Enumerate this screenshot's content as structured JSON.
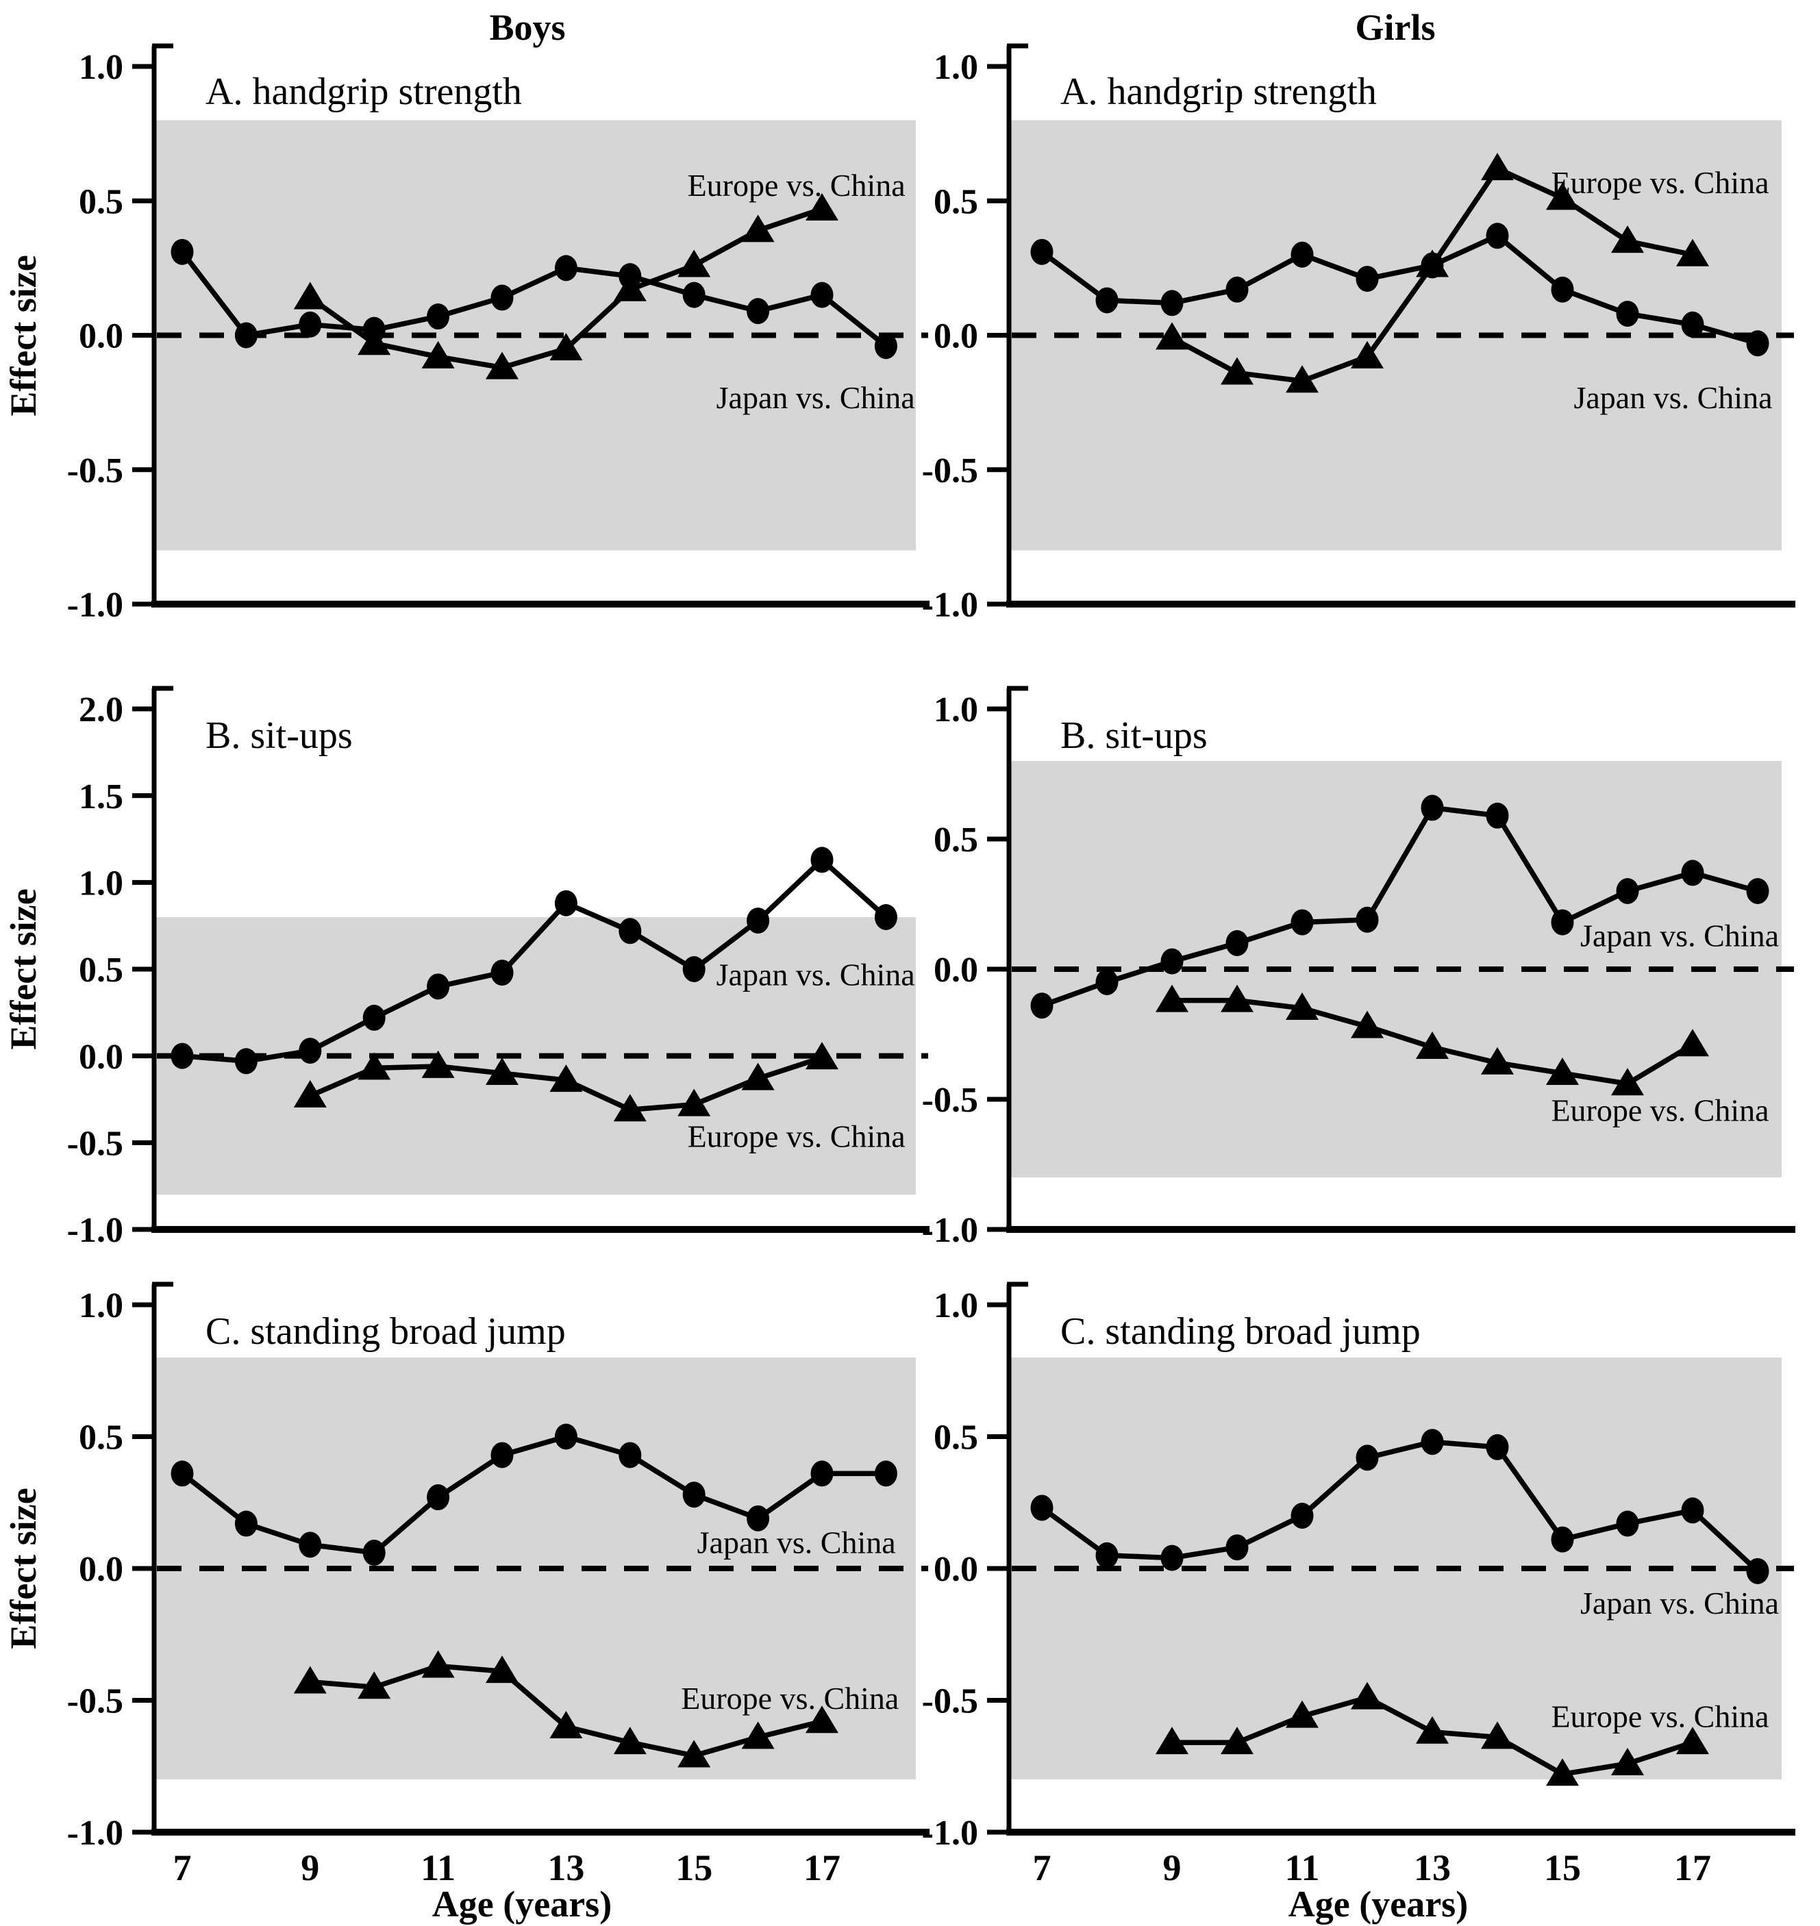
{
  "figure": {
    "column_titles": [
      "Boys",
      "Girls"
    ],
    "y_axis_label": "Effect size",
    "x_axis_label": "Age (years)",
    "colors": {
      "line": "#000000",
      "reference_band": "#d6d6d6",
      "background": "#ffffff"
    }
  },
  "chart_data": [
    {
      "id": "boys-handgrip",
      "column": "Boys",
      "panel_label": "A. handgrip strength",
      "type": "line",
      "xlabel": "Age (years)",
      "ylabel": "Effect size",
      "ylim": [
        -1.0,
        1.0
      ],
      "yticks": [
        "1.0",
        "0.5",
        "0.0",
        "-0.5",
        "-1.0"
      ],
      "ytick_values": [
        1.0,
        0.5,
        0.0,
        -0.5,
        -1.0
      ],
      "xticks": [
        7,
        9,
        11,
        13,
        15,
        17
      ],
      "show_xtick_labels": false,
      "reference_band": [
        -0.8,
        0.8
      ],
      "zero_line": 0.0,
      "grid": false,
      "series": [
        {
          "name": "Japan vs. China",
          "marker": "circle",
          "x": [
            7,
            8,
            9,
            10,
            11,
            12,
            13,
            14,
            15,
            16,
            17,
            18
          ],
          "values": [
            0.31,
            0.0,
            0.04,
            0.02,
            0.07,
            0.14,
            0.25,
            0.22,
            0.15,
            0.09,
            0.15,
            -0.04
          ],
          "label": {
            "text": "Japan vs. China",
            "age": 16.9,
            "value": -0.23
          }
        },
        {
          "name": "Europe vs. China",
          "marker": "triangle",
          "x": [
            9,
            10,
            11,
            12,
            13,
            14,
            15,
            16,
            17
          ],
          "values": [
            0.14,
            -0.03,
            -0.08,
            -0.12,
            -0.05,
            0.17,
            0.26,
            0.39,
            0.47
          ],
          "label": {
            "text": "Europe vs. China",
            "age": 16.6,
            "value": 0.56
          }
        }
      ]
    },
    {
      "id": "girls-handgrip",
      "column": "Girls",
      "panel_label": "A. handgrip strength",
      "type": "line",
      "xlabel": "Age (years)",
      "ylabel": "Effect size",
      "ylim": [
        -1.0,
        1.0
      ],
      "yticks": [
        "1.0",
        "0.5",
        "0.0",
        "-0.5",
        "-1.0"
      ],
      "ytick_values": [
        1.0,
        0.5,
        0.0,
        -0.5,
        -1.0
      ],
      "xticks": [
        7,
        9,
        11,
        13,
        15,
        17
      ],
      "show_xtick_labels": false,
      "reference_band": [
        -0.8,
        0.8
      ],
      "zero_line": 0.0,
      "grid": false,
      "series": [
        {
          "name": "Japan vs. China",
          "marker": "circle",
          "x": [
            7,
            8,
            9,
            10,
            11,
            12,
            13,
            14,
            15,
            16,
            17,
            18
          ],
          "values": [
            0.31,
            0.13,
            0.12,
            0.17,
            0.3,
            0.21,
            0.26,
            0.37,
            0.17,
            0.08,
            0.04,
            -0.03
          ],
          "label": {
            "text": "Japan vs. China",
            "age": 16.7,
            "value": -0.23
          }
        },
        {
          "name": "Europe vs. China",
          "marker": "triangle",
          "x": [
            9,
            10,
            11,
            12,
            13,
            14,
            15,
            16,
            17
          ],
          "values": [
            -0.01,
            -0.14,
            -0.17,
            -0.08,
            0.26,
            0.62,
            0.51,
            0.35,
            0.3
          ],
          "label": {
            "text": "Europe vs. China",
            "age": 16.5,
            "value": 0.57
          }
        }
      ]
    },
    {
      "id": "boys-situps",
      "column": "Boys",
      "panel_label": "B. sit-ups",
      "type": "line",
      "xlabel": "Age (years)",
      "ylabel": "Effect size",
      "ylim": [
        -1.0,
        2.0
      ],
      "yticks": [
        "2.0",
        "1.5",
        "1.0",
        "0.5",
        "0.0",
        "-0.5",
        "-1.0"
      ],
      "ytick_values": [
        2.0,
        1.5,
        1.0,
        0.5,
        0.0,
        -0.5,
        -1.0
      ],
      "xticks": [
        7,
        9,
        11,
        13,
        15,
        17
      ],
      "show_xtick_labels": false,
      "reference_band": [
        -0.8,
        0.8
      ],
      "zero_line": 0.0,
      "grid": false,
      "series": [
        {
          "name": "Japan vs. China",
          "marker": "circle",
          "x": [
            7,
            8,
            9,
            10,
            11,
            12,
            13,
            14,
            15,
            16,
            17,
            18
          ],
          "values": [
            0.0,
            -0.03,
            0.03,
            0.22,
            0.4,
            0.48,
            0.88,
            0.72,
            0.5,
            0.78,
            1.13,
            0.8
          ],
          "label": {
            "text": "Japan vs. China",
            "age": 16.9,
            "value": 0.47
          }
        },
        {
          "name": "Europe vs. China",
          "marker": "triangle",
          "x": [
            9,
            10,
            11,
            12,
            13,
            14,
            15,
            16,
            17
          ],
          "values": [
            -0.23,
            -0.07,
            -0.06,
            -0.1,
            -0.14,
            -0.31,
            -0.28,
            -0.13,
            -0.01
          ],
          "label": {
            "text": "Europe vs. China",
            "age": 16.6,
            "value": -0.46
          }
        }
      ]
    },
    {
      "id": "girls-situps",
      "column": "Girls",
      "panel_label": "B. sit-ups",
      "type": "line",
      "xlabel": "Age (years)",
      "ylabel": "Effect size",
      "ylim": [
        -1.0,
        1.0
      ],
      "yticks": [
        "1.0",
        "0.5",
        "0.0",
        "-0.5",
        "-1.0"
      ],
      "ytick_values": [
        1.0,
        0.5,
        0.0,
        -0.5,
        -1.0
      ],
      "xticks": [
        7,
        9,
        11,
        13,
        15,
        17
      ],
      "show_xtick_labels": false,
      "reference_band": [
        -0.8,
        0.8
      ],
      "zero_line": 0.0,
      "grid": false,
      "series": [
        {
          "name": "Japan vs. China",
          "marker": "circle",
          "x": [
            7,
            8,
            9,
            10,
            11,
            12,
            13,
            14,
            15,
            16,
            17,
            18
          ],
          "values": [
            -0.14,
            -0.05,
            0.03,
            0.1,
            0.18,
            0.19,
            0.62,
            0.59,
            0.18,
            0.3,
            0.37,
            0.3
          ],
          "label": {
            "text": "Japan vs. China",
            "age": 16.8,
            "value": 0.13
          }
        },
        {
          "name": "Europe vs. China",
          "marker": "triangle",
          "x": [
            9,
            10,
            11,
            12,
            13,
            14,
            15,
            16,
            17
          ],
          "values": [
            -0.12,
            -0.12,
            -0.15,
            -0.22,
            -0.3,
            -0.36,
            -0.4,
            -0.44,
            -0.29
          ],
          "label": {
            "text": "Europe vs. China",
            "age": 16.5,
            "value": -0.54
          }
        }
      ]
    },
    {
      "id": "boys-jump",
      "column": "Boys",
      "panel_label": "C. standing broad jump",
      "type": "line",
      "xlabel": "Age (years)",
      "ylabel": "Effect size",
      "ylim": [
        -1.0,
        1.0
      ],
      "yticks": [
        "1.0",
        "0.5",
        "0.0",
        "-0.5",
        "-1.0"
      ],
      "ytick_values": [
        1.0,
        0.5,
        0.0,
        -0.5,
        -1.0
      ],
      "xticks": [
        7,
        9,
        11,
        13,
        15,
        17
      ],
      "show_xtick_labels": true,
      "reference_band": [
        -0.8,
        0.8
      ],
      "zero_line": 0.0,
      "grid": false,
      "series": [
        {
          "name": "Japan vs. China",
          "marker": "circle",
          "x": [
            7,
            8,
            9,
            10,
            11,
            12,
            13,
            14,
            15,
            16,
            17,
            18
          ],
          "values": [
            0.36,
            0.17,
            0.09,
            0.06,
            0.27,
            0.43,
            0.5,
            0.43,
            0.28,
            0.19,
            0.36,
            0.36
          ],
          "label": {
            "text": "Japan vs. China",
            "age": 16.6,
            "value": 0.1
          }
        },
        {
          "name": "Europe vs. China",
          "marker": "triangle",
          "x": [
            9,
            10,
            11,
            12,
            13,
            14,
            15,
            16,
            17
          ],
          "values": [
            -0.43,
            -0.45,
            -0.37,
            -0.39,
            -0.6,
            -0.66,
            -0.71,
            -0.64,
            -0.58
          ],
          "label": {
            "text": "Europe vs. China",
            "age": 16.5,
            "value": -0.49
          }
        }
      ]
    },
    {
      "id": "girls-jump",
      "column": "Girls",
      "panel_label": "C. standing broad jump",
      "type": "line",
      "xlabel": "Age (years)",
      "ylabel": "Effect size",
      "ylim": [
        -1.0,
        1.0
      ],
      "yticks": [
        "1.0",
        "0.5",
        "0.0",
        "-0.5",
        "-1.0"
      ],
      "ytick_values": [
        1.0,
        0.5,
        0.0,
        -0.5,
        -1.0
      ],
      "xticks": [
        7,
        9,
        11,
        13,
        15,
        17
      ],
      "show_xtick_labels": true,
      "reference_band": [
        -0.8,
        0.8
      ],
      "zero_line": 0.0,
      "grid": false,
      "series": [
        {
          "name": "Japan vs. China",
          "marker": "circle",
          "x": [
            7,
            8,
            9,
            10,
            11,
            12,
            13,
            14,
            15,
            16,
            17,
            18
          ],
          "values": [
            0.23,
            0.05,
            0.04,
            0.08,
            0.2,
            0.42,
            0.48,
            0.46,
            0.11,
            0.17,
            0.22,
            -0.01
          ],
          "label": {
            "text": "Japan vs. China",
            "age": 16.8,
            "value": -0.13
          }
        },
        {
          "name": "Europe vs. China",
          "marker": "triangle",
          "x": [
            9,
            10,
            11,
            12,
            13,
            14,
            15,
            16,
            17
          ],
          "values": [
            -0.66,
            -0.66,
            -0.56,
            -0.49,
            -0.62,
            -0.64,
            -0.78,
            -0.74,
            -0.66
          ],
          "label": {
            "text": "Europe vs. China",
            "age": 16.5,
            "value": -0.56
          }
        }
      ]
    }
  ]
}
